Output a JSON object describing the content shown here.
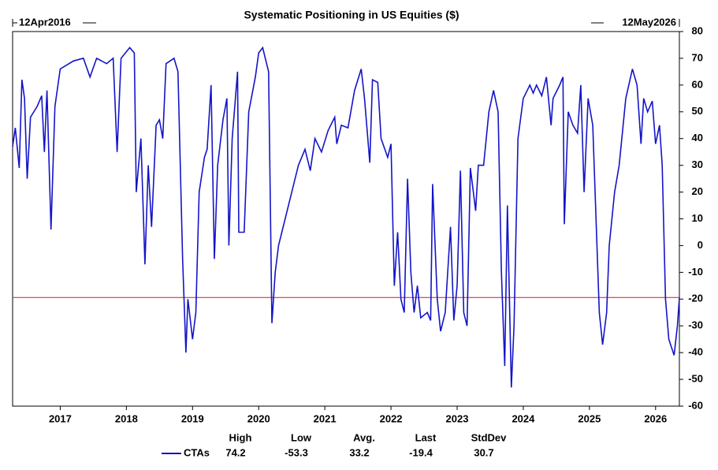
{
  "chart_data": {
    "type": "line",
    "title": "Systematic Positioning in US Equities ($)",
    "start_label": "12Apr2016",
    "end_label": "12May2026",
    "x": [
      2016.28,
      2016.32,
      2016.38,
      2016.42,
      2016.46,
      2016.5,
      2016.55,
      2016.65,
      2016.72,
      2016.76,
      2016.8,
      2016.86,
      2016.92,
      2017.0,
      2017.2,
      2017.35,
      2017.45,
      2017.55,
      2017.7,
      2017.8,
      2017.86,
      2017.92,
      2018.05,
      2018.12,
      2018.15,
      2018.22,
      2018.28,
      2018.33,
      2018.38,
      2018.45,
      2018.5,
      2018.55,
      2018.6,
      2018.72,
      2018.78,
      2018.85,
      2018.9,
      2018.93,
      2019.0,
      2019.05,
      2019.1,
      2019.18,
      2019.22,
      2019.28,
      2019.33,
      2019.38,
      2019.46,
      2019.52,
      2019.55,
      2019.6,
      2019.68,
      2019.7,
      2019.78,
      2019.85,
      2019.95,
      2020.0,
      2020.06,
      2020.1,
      2020.15,
      2020.2,
      2020.25,
      2020.3,
      2020.4,
      2020.6,
      2020.7,
      2020.78,
      2020.85,
      2020.95,
      2021.05,
      2021.15,
      2021.18,
      2021.25,
      2021.35,
      2021.45,
      2021.55,
      2021.6,
      2021.68,
      2021.72,
      2021.8,
      2021.85,
      2021.95,
      2022.0,
      2022.05,
      2022.1,
      2022.15,
      2022.2,
      2022.25,
      2022.3,
      2022.35,
      2022.4,
      2022.45,
      2022.55,
      2022.6,
      2022.63,
      2022.7,
      2022.75,
      2022.82,
      2022.9,
      2022.95,
      2023.0,
      2023.05,
      2023.1,
      2023.15,
      2023.2,
      2023.28,
      2023.32,
      2023.4,
      2023.48,
      2023.55,
      2023.62,
      2023.67,
      2023.72,
      2023.76,
      2023.82,
      2023.86,
      2023.92,
      2024.0,
      2024.1,
      2024.15,
      2024.2,
      2024.28,
      2024.35,
      2024.42,
      2024.45,
      2024.55,
      2024.6,
      2024.62,
      2024.68,
      2024.75,
      2024.82,
      2024.87,
      2024.92,
      2024.98,
      2025.05,
      2025.15,
      2025.2,
      2025.26,
      2025.3,
      2025.38,
      2025.45,
      2025.55,
      2025.65,
      2025.72,
      2025.78,
      2025.82,
      2025.88,
      2025.95,
      2026.0,
      2026.06,
      2026.1,
      2026.15,
      2026.2,
      2026.28,
      2026.33,
      2026.36
    ],
    "series": [
      {
        "name": "CTAs",
        "color": "#1414c8",
        "values": [
          37,
          44,
          29,
          62,
          55,
          25,
          48,
          52,
          56,
          35,
          58,
          6,
          52,
          66,
          69,
          70,
          63,
          70,
          68,
          70,
          35,
          70,
          74,
          72,
          20,
          40,
          -7,
          30,
          7,
          45,
          47,
          40,
          68,
          70,
          65,
          -5,
          -40,
          -20,
          -35,
          -25,
          20,
          33,
          36,
          60,
          -5,
          30,
          47,
          55,
          0,
          40,
          65,
          5,
          5,
          50,
          63,
          72,
          74,
          70,
          65,
          -29,
          -10,
          0,
          10,
          30,
          36,
          28,
          40,
          35,
          43,
          48,
          38,
          45,
          44,
          58,
          66,
          55,
          31,
          62,
          61,
          40,
          33,
          38,
          -15,
          5,
          -20,
          -25,
          25,
          -10,
          -25,
          -15,
          -27,
          -25,
          -28,
          23,
          -20,
          -32,
          -25,
          7,
          -28,
          -15,
          28,
          -25,
          -30,
          29,
          13,
          30,
          30,
          50,
          58,
          50,
          -10,
          -45,
          15,
          -53,
          -30,
          40,
          55,
          60,
          57,
          60,
          56,
          63,
          45,
          55,
          60,
          63,
          8,
          50,
          45,
          42,
          60,
          20,
          55,
          45,
          -25,
          -37,
          -25,
          0,
          20,
          30,
          55,
          66,
          60,
          38,
          55,
          50,
          54,
          38,
          45,
          30,
          -20,
          -35,
          -41,
          -30,
          -19.4
        ]
      }
    ],
    "xlim": [
      2016.28,
      2026.36
    ],
    "xticks": [
      2017,
      2018,
      2019,
      2020,
      2021,
      2022,
      2023,
      2024,
      2025,
      2026
    ],
    "ylim": [
      -60,
      80
    ],
    "yticks": [
      -60,
      -50,
      -40,
      -30,
      -20,
      -10,
      0,
      10,
      20,
      30,
      40,
      50,
      60,
      70,
      80
    ],
    "last_line_color": "#cc2020",
    "stats": {
      "headers": [
        "High",
        "Low",
        "Avg.",
        "Last",
        "StdDev"
      ],
      "values": [
        74.2,
        -53.3,
        33.2,
        -19.4,
        30.7
      ]
    }
  }
}
